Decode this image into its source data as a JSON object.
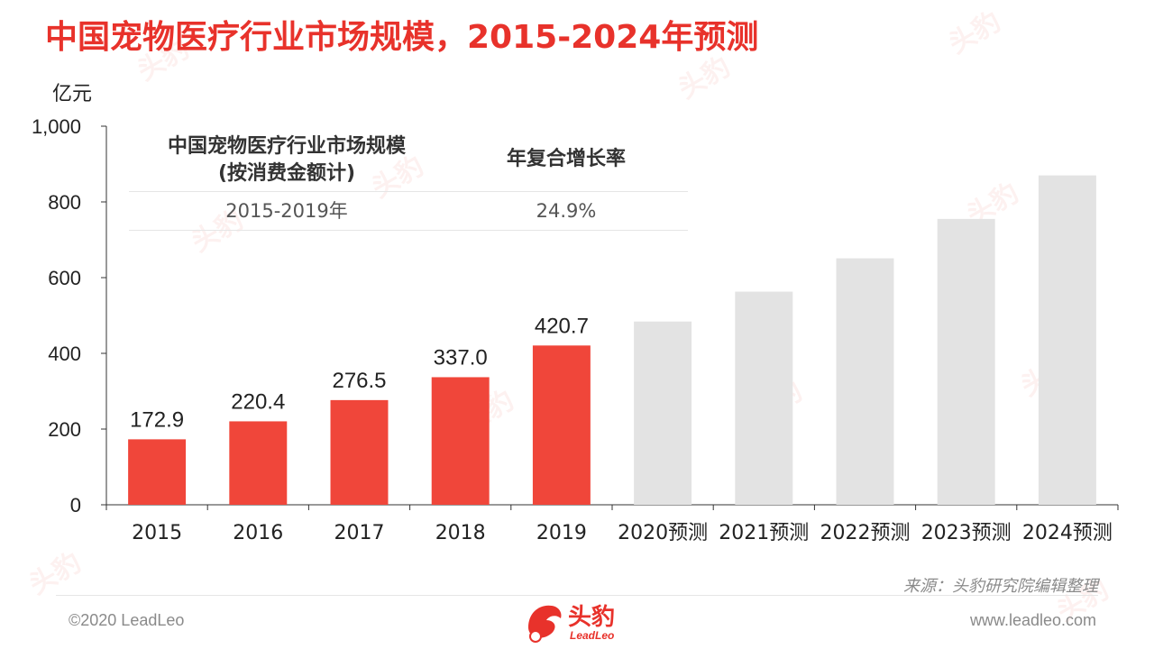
{
  "title": "中国宠物医疗行业市场规模，2015-2024年预测",
  "unit": "亿元",
  "info_table": {
    "header_col1_line1": "中国宠物医疗行业市场规模",
    "header_col1_line2": "(按消费金额计)",
    "header_col2": "年复合增长率",
    "row_period": "2015-2019年",
    "row_cagr": "24.9%"
  },
  "source": "来源：头豹研究院编辑整理",
  "footer": {
    "copyright": "©2020 LeadLeo",
    "website": "www.leadleo.com",
    "logo_text": "头豹",
    "logo_sub": "LeadLeo"
  },
  "colors": {
    "title": "#e8322b",
    "actual_bar": "#f0463a",
    "forecast_bar": "#e3e3e3",
    "axis": "#333333"
  },
  "chart_data": {
    "type": "bar",
    "categories": [
      "2015",
      "2016",
      "2017",
      "2018",
      "2019",
      "2020预测",
      "2021预测",
      "2022预测",
      "2023预测",
      "2024预测"
    ],
    "values": [
      172.9,
      220.4,
      276.5,
      337.0,
      420.7,
      484,
      563,
      651,
      755,
      870
    ],
    "data_labels": [
      "172.9",
      "220.4",
      "276.5",
      "337.0",
      "420.7",
      "",
      "",
      "",
      "",
      ""
    ],
    "forecast": [
      false,
      false,
      false,
      false,
      false,
      true,
      true,
      true,
      true,
      true
    ],
    "ylabel": "亿元",
    "ylim": [
      0,
      1000
    ],
    "yticks": [
      0,
      200,
      400,
      600,
      800,
      1000
    ],
    "ytick_labels": [
      "0",
      "200",
      "400",
      "600",
      "800",
      "1,000"
    ],
    "grid": false,
    "legend": "none"
  }
}
